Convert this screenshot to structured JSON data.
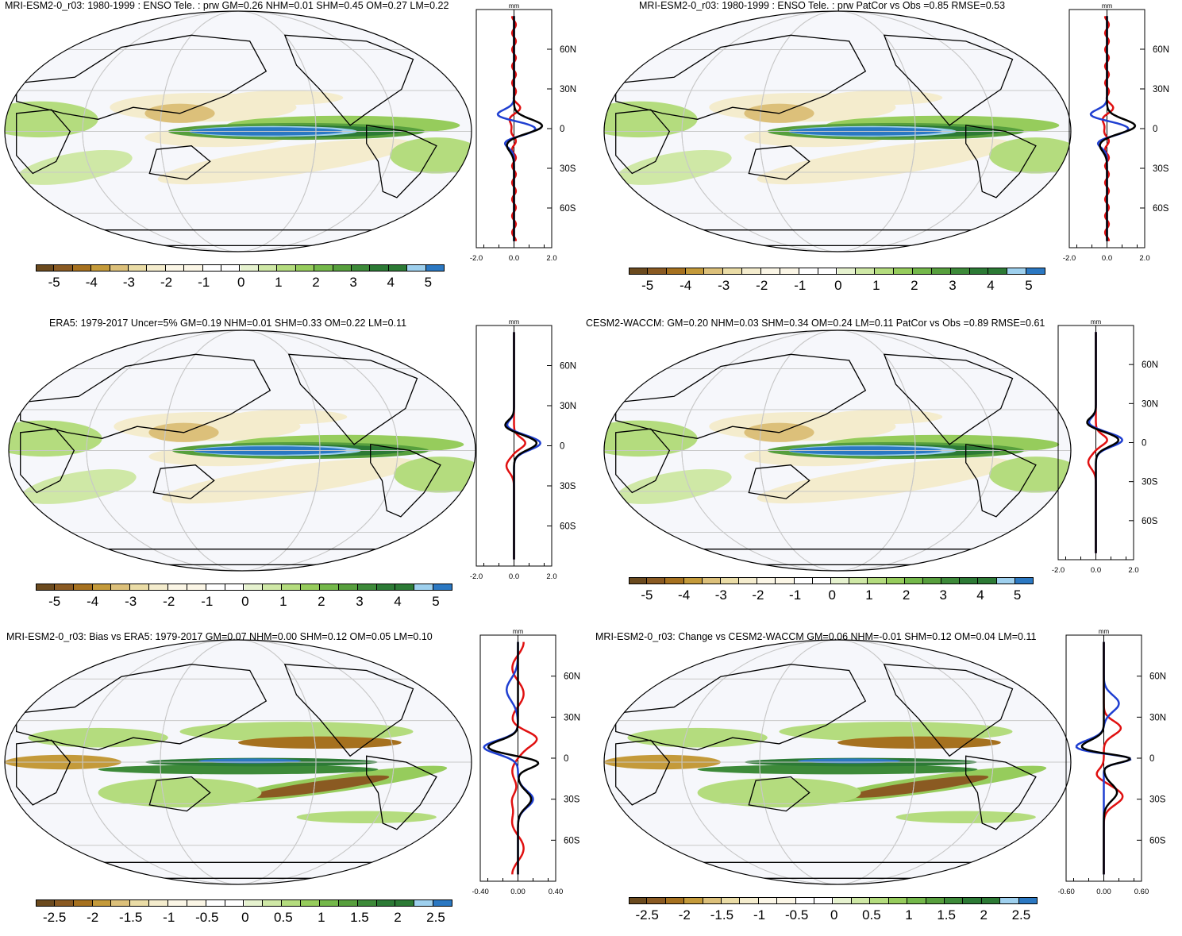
{
  "panels": [
    {
      "title": "MRI-ESM2-0_r03: 1980-1999 : ENSO Tele. : prw GM=0.26 NHM=0.01 SHM=0.45 OM=0.27 LM=0.22",
      "colorbar_labels": [
        "-5",
        "-4",
        "-3",
        "-2",
        "-1",
        "0",
        "1",
        "2",
        "3",
        "4",
        "5"
      ],
      "profile": {
        "unit": "mm",
        "x_ticks": [
          "-2.0",
          "0.0",
          "2.0"
        ],
        "lat_ticks": [
          "60N",
          "30N",
          "0",
          "30S",
          "60S"
        ]
      }
    },
    {
      "title": "MRI-ESM2-0_r03: 1980-1999 : ENSO Tele. : prw PatCor vs Obs =0.85 RMSE=0.53",
      "colorbar_labels": [
        "-5",
        "-4",
        "-3",
        "-2",
        "-1",
        "0",
        "1",
        "2",
        "3",
        "4",
        "5"
      ],
      "profile": {
        "unit": "mm",
        "x_ticks": [
          "-2.0",
          "0.0",
          "2.0"
        ],
        "lat_ticks": [
          "60N",
          "30N",
          "0",
          "30S",
          "60S"
        ]
      }
    },
    {
      "title": "ERA5: 1979-2017 Uncer=5% GM=0.19 NHM=0.01 SHM=0.33 OM=0.22 LM=0.11",
      "colorbar_labels": [
        "-5",
        "-4",
        "-3",
        "-2",
        "-1",
        "0",
        "1",
        "2",
        "3",
        "4",
        "5"
      ],
      "profile": {
        "unit": "mm",
        "x_ticks": [
          "-2.0",
          "0.0",
          "2.0"
        ],
        "lat_ticks": [
          "60N",
          "30N",
          "0",
          "30S",
          "60S"
        ]
      }
    },
    {
      "title": "CESM2-WACCM: GM=0.20 NHM=0.03 SHM=0.34 OM=0.24 LM=0.11 PatCor vs Obs =0.89 RMSE=0.61",
      "colorbar_labels": [
        "-5",
        "-4",
        "-3",
        "-2",
        "-1",
        "0",
        "1",
        "2",
        "3",
        "4",
        "5"
      ],
      "profile": {
        "unit": "mm",
        "x_ticks": [
          "-2.0",
          "0.0",
          "2.0"
        ],
        "lat_ticks": [
          "60N",
          "30N",
          "0",
          "30S",
          "60S"
        ]
      }
    },
    {
      "title": "MRI-ESM2-0_r03: Bias vs ERA5: 1979-2017 GM=0.07 NHM=0.00 SHM=0.12 OM=0.05 LM=0.10",
      "colorbar_labels": [
        "-2.5",
        "-2",
        "-1.5",
        "-1",
        "-0.5",
        "0",
        "0.5",
        "1",
        "1.5",
        "2",
        "2.5"
      ],
      "profile": {
        "unit": "mm",
        "x_ticks": [
          "-0.40",
          "0.00",
          "0.40"
        ],
        "lat_ticks": [
          "60N",
          "30N",
          "0",
          "30S",
          "60S"
        ]
      }
    },
    {
      "title": "MRI-ESM2-0_r03: Change vs CESM2-WACCM GM=0.06 NHM=-0.01 SHM=0.12 OM=0.04 LM=0.11",
      "colorbar_labels": [
        "-2.5",
        "-2",
        "-1.5",
        "-1",
        "-0.5",
        "0",
        "0.5",
        "1",
        "1.5",
        "2",
        "2.5"
      ],
      "profile": {
        "unit": "mm",
        "x_ticks": [
          "-0.60",
          "0.00",
          "0.60"
        ],
        "lat_ticks": [
          "60N",
          "30N",
          "0",
          "30S",
          "60S"
        ]
      }
    }
  ],
  "colors": {
    "palette": [
      "#6b4a1e",
      "#8a5a22",
      "#a6711f",
      "#c49a3a",
      "#dcc07a",
      "#eadca6",
      "#f4eccd",
      "#fbf6e6",
      "#ffffff",
      "#ffffff",
      "#e6f2cf",
      "#cfe8a6",
      "#b4dc7e",
      "#96cc5c",
      "#74b84a",
      "#579f3d",
      "#3d8a39",
      "#2c7a35",
      "#9ed0ee",
      "#2b78c2"
    ],
    "model_line": "#1f3fd1",
    "obs_line": "#e01010",
    "mean_line": "#000000",
    "ocean": "#f6f7fb",
    "grid": "#c8c8c8"
  }
}
